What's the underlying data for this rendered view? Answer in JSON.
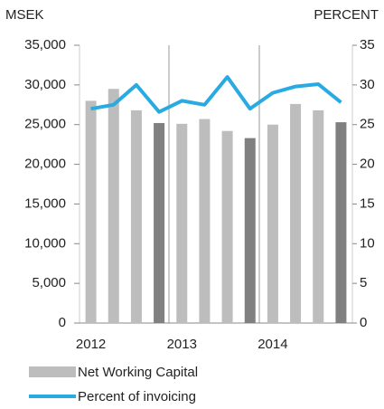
{
  "chart_data": {
    "type": "bar_line",
    "y_label": "MSEK",
    "y2_label": "PERCENT",
    "categories": [
      "2012",
      null,
      null,
      null,
      "2013",
      null,
      null,
      null,
      "2014",
      null,
      null,
      null
    ],
    "series": [
      {
        "name": "Net Working Capital",
        "type": "bar",
        "color": "#bdbdbd",
        "colors": [
          "#bdbdbd",
          "#bdbdbd",
          "#bdbdbd",
          "#808080",
          "#bdbdbd",
          "#bdbdbd",
          "#bdbdbd",
          "#808080",
          "#bdbdbd",
          "#bdbdbd",
          "#bdbdbd",
          "#808080"
        ],
        "values": [
          28000,
          29500,
          26800,
          25200,
          25100,
          25700,
          24200,
          23300,
          25000,
          27600,
          26800,
          25300
        ]
      },
      {
        "name": "Percent of invoicing",
        "type": "line",
        "axis": "y2",
        "color": "#29abe2",
        "values": [
          27,
          27.5,
          30,
          26.6,
          28,
          27.5,
          31,
          27,
          29,
          29.8,
          30.1,
          27.8
        ]
      }
    ],
    "ylim": [
      0,
      35000
    ],
    "yticks": [
      0,
      {
        "value": 5000,
        "label": "5,000"
      },
      {
        "value": 10000,
        "label": "10,000"
      },
      {
        "value": 15000,
        "label": "15,000"
      },
      {
        "value": 20000,
        "label": "20,000"
      },
      {
        "value": 25000,
        "label": "25,000"
      },
      {
        "value": 30000,
        "label": "30,000"
      },
      {
        "value": 35000,
        "label": "35,000"
      }
    ],
    "y2lim": [
      0,
      35
    ],
    "y2ticks": [
      0,
      5,
      10,
      15,
      20,
      25,
      30,
      35
    ]
  }
}
